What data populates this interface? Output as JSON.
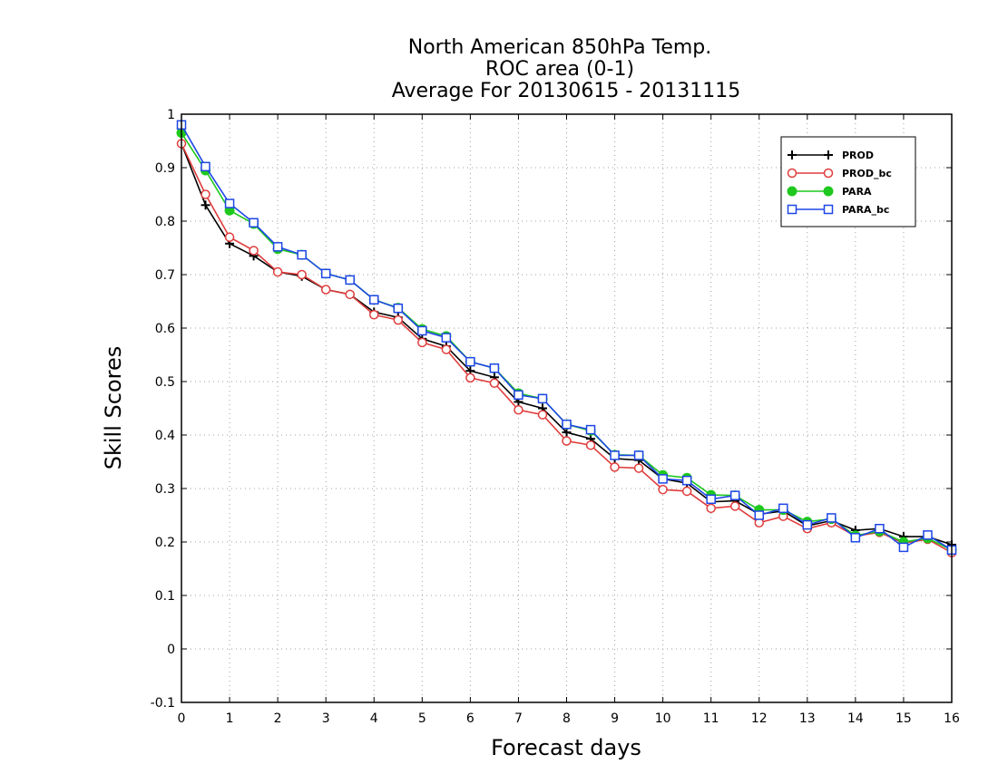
{
  "chart_data": {
    "type": "line",
    "title_lines": [
      "North American 850hPa Temp.",
      "ROC area (0-1)",
      "Average For 20130615 - 20131115"
    ],
    "xlabel": "Forecast days",
    "ylabel": "Skill Scores",
    "xlim": [
      0,
      16
    ],
    "ylim": [
      -0.1,
      1
    ],
    "x_ticks": [
      0,
      1,
      2,
      3,
      4,
      5,
      6,
      7,
      8,
      9,
      10,
      11,
      12,
      13,
      14,
      15,
      16
    ],
    "x_tick_labels": [
      "0",
      "1",
      "2",
      "3",
      "4",
      "5",
      "6",
      "7",
      "8",
      "9",
      "10",
      "11",
      "12",
      "13",
      "14",
      "15",
      "16"
    ],
    "y_ticks": [
      -0.1,
      0,
      0.1,
      0.2,
      0.3,
      0.4,
      0.5,
      0.6,
      0.7,
      0.8,
      0.9,
      1
    ],
    "y_tick_labels": [
      "-0.1",
      "0",
      "0.1",
      "0.2",
      "0.3",
      "0.4",
      "0.5",
      "0.6",
      "0.7",
      "0.8",
      "0.9",
      "1"
    ],
    "grid": true,
    "legend_position": "top-right",
    "x": [
      0,
      0.5,
      1,
      1.5,
      2,
      2.5,
      3,
      3.5,
      4,
      4.5,
      5,
      5.5,
      6,
      6.5,
      7,
      7.5,
      8,
      8.5,
      9,
      9.5,
      10,
      10.5,
      11,
      11.5,
      12,
      12.5,
      13,
      13.5,
      14,
      14.5,
      15,
      15.5,
      16
    ],
    "series": [
      {
        "name": "PROD",
        "color": "#000000",
        "marker": "plus",
        "values": [
          0.945,
          0.83,
          0.758,
          0.735,
          0.705,
          0.697,
          0.672,
          0.663,
          0.63,
          0.62,
          0.58,
          0.566,
          0.52,
          0.508,
          0.462,
          0.45,
          0.405,
          0.393,
          0.356,
          0.353,
          0.318,
          0.31,
          0.275,
          0.277,
          0.252,
          0.258,
          0.23,
          0.24,
          0.222,
          0.225,
          0.21,
          0.21,
          0.195
        ]
      },
      {
        "name": "PROD_bc",
        "color": "#e03c3c",
        "marker": "circle",
        "values": [
          0.945,
          0.85,
          0.77,
          0.745,
          0.705,
          0.7,
          0.672,
          0.663,
          0.625,
          0.615,
          0.573,
          0.56,
          0.507,
          0.497,
          0.447,
          0.438,
          0.389,
          0.381,
          0.34,
          0.338,
          0.298,
          0.295,
          0.263,
          0.267,
          0.236,
          0.248,
          0.225,
          0.236,
          0.211,
          0.218,
          0.198,
          0.205,
          0.18
        ]
      },
      {
        "name": "PARA",
        "color": "#1ec81e",
        "marker": "filled-circle",
        "values": [
          0.965,
          0.895,
          0.82,
          0.795,
          0.748,
          0.737,
          0.702,
          0.69,
          0.653,
          0.638,
          0.598,
          0.585,
          0.537,
          0.525,
          0.478,
          0.468,
          0.42,
          0.408,
          0.363,
          0.362,
          0.325,
          0.32,
          0.288,
          0.287,
          0.26,
          0.26,
          0.238,
          0.243,
          0.212,
          0.22,
          0.2,
          0.207,
          0.185
        ]
      },
      {
        "name": "PARA_bc",
        "color": "#1e46e6",
        "marker": "square",
        "values": [
          0.98,
          0.902,
          0.833,
          0.797,
          0.752,
          0.737,
          0.702,
          0.69,
          0.653,
          0.637,
          0.595,
          0.582,
          0.537,
          0.525,
          0.475,
          0.468,
          0.42,
          0.41,
          0.362,
          0.362,
          0.318,
          0.315,
          0.28,
          0.287,
          0.25,
          0.263,
          0.232,
          0.245,
          0.208,
          0.225,
          0.19,
          0.213,
          0.185
        ]
      }
    ]
  }
}
